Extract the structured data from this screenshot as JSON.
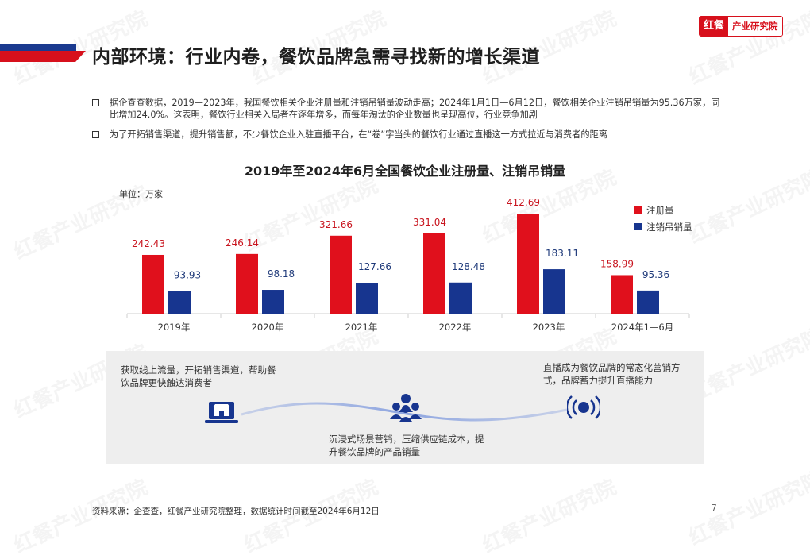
{
  "header": {
    "title": "内部环境：行业内卷，餐饮品牌急需寻找新的增长渠道",
    "logo_mark": "红餐",
    "logo_text": "产业研究院"
  },
  "bullets": [
    "据企查查数据，2019—2023年，我国餐饮相关企业注册量和注销吊销量波动走高；2024年1月1日—6月12日，餐饮相关企业注销吊销量为95.36万家，同比增加24.0%。这表明，餐饮行业相关入局者在逐年增多，而每年淘汰的企业数量也呈现高位，行业竞争加剧",
    "为了开拓销售渠道，提升销售额，不少餐饮企业入驻直播平台，在“卷”字当头的餐饮行业通过直播这一方式拉近与消费者的距离"
  ],
  "chart_title": "2019年至2024年6月全国餐饮企业注册量、注销吊销量",
  "unit_label": "单位：万家",
  "chart_data": {
    "type": "bar",
    "title": "2019年至2024年6月全国餐饮企业注册量、注销吊销量",
    "ylabel": "单位：万家",
    "categories": [
      "2019年",
      "2020年",
      "2021年",
      "2022年",
      "2023年",
      "2024年1—6月"
    ],
    "series": [
      {
        "name": "注册量",
        "color": "#e0101c",
        "values": [
          242.43,
          246.14,
          321.66,
          331.04,
          412.69,
          158.99
        ]
      },
      {
        "name": "注销吊销量",
        "color": "#17358f",
        "values": [
          93.93,
          98.18,
          127.66,
          128.48,
          183.11,
          95.36
        ]
      }
    ],
    "ylim": [
      0,
      430
    ],
    "grid": false,
    "legend_position": "top-right"
  },
  "channels": [
    {
      "text": "获取线上流量，开拓销售渠道，帮助餐饮品牌更快触达消费者",
      "icon": "shop-laptop-icon"
    },
    {
      "text": "沉浸式场景营销，压缩供应链成本，提升餐饮品牌的产品销量",
      "icon": "people-group-icon"
    },
    {
      "text": "直播成为餐饮品牌的常态化营销方式，品牌蓄力提升直播能力",
      "icon": "live-broadcast-icon"
    }
  ],
  "footer": {
    "source": "资料来源：企查查，红餐产业研究院整理，数据统计时间截至2024年6月12日",
    "page_number": "7"
  }
}
